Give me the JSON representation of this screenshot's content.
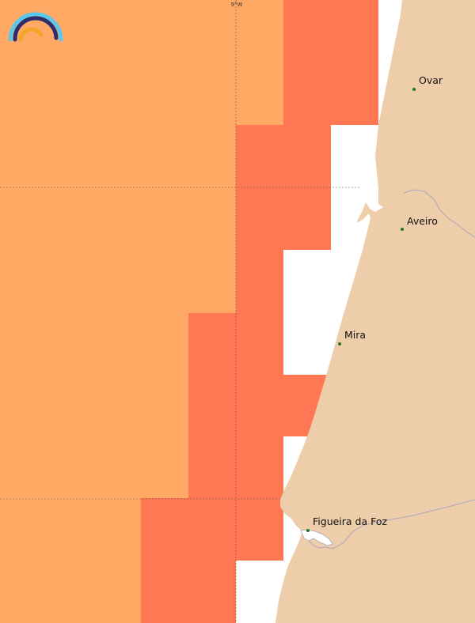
{
  "map": {
    "grid_label": "9°W",
    "colors": {
      "sea_light": "#FFA964",
      "sea_dark": "#FF7853",
      "land": "#EECDAB",
      "background": "#FFFFFF",
      "river": "#A9A7B8",
      "grid": "#555555",
      "place_dot": "#1A7A1A"
    },
    "places": [
      {
        "name": "Ovar",
        "dot_color": "#1A7A1A"
      },
      {
        "name": "Aveiro",
        "dot_color": "#1A7A1A"
      },
      {
        "name": "Mira",
        "dot_color": "#1A7A1A"
      },
      {
        "name": "Figueira da Foz",
        "dot_color": "#1A7A1A"
      }
    ],
    "logo": {
      "name": "rainbow-logo",
      "colors": [
        "#5BC8EA",
        "#2D2C6E",
        "#F4A62A"
      ]
    }
  }
}
